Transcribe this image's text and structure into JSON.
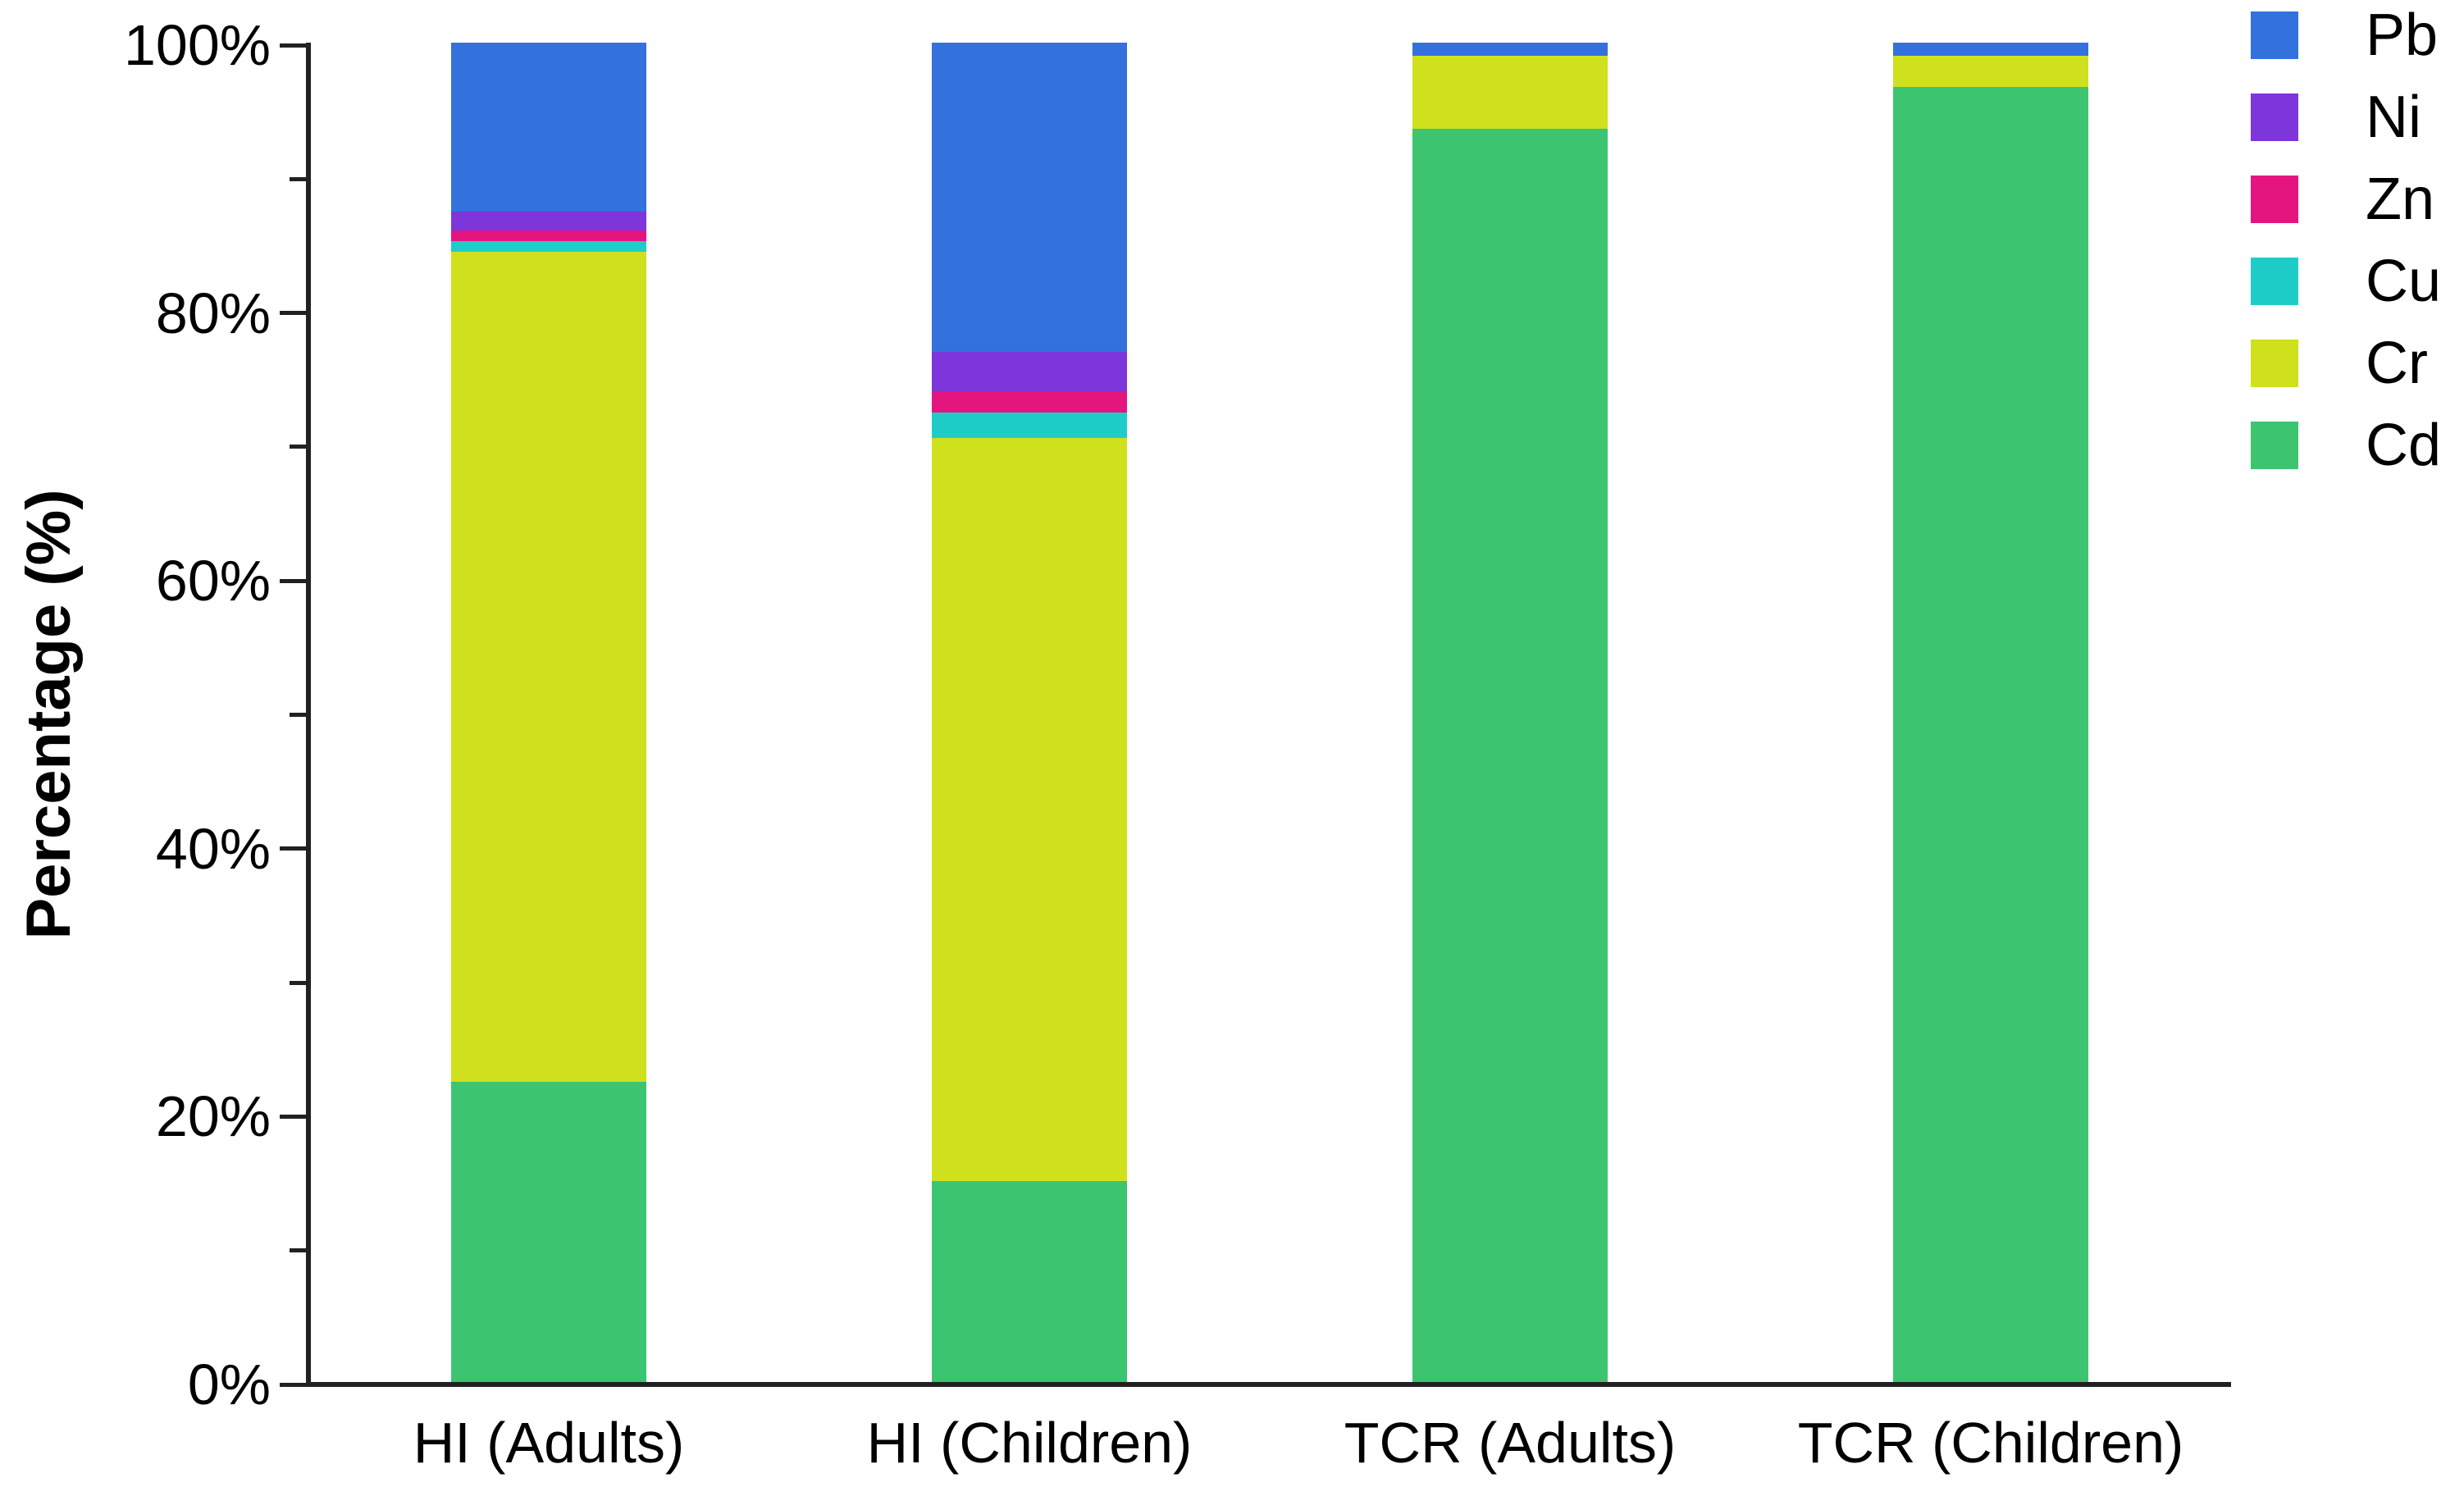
{
  "chart_data": {
    "type": "bar",
    "stacked": true,
    "title": "",
    "categories": [
      "HI (Adults)",
      "HI (Children)",
      "TCR (Adults)",
      "TCR (Children)"
    ],
    "series": [
      {
        "name": "Pb",
        "color": "#3371dd",
        "values": [
          12.6,
          23.1,
          1.0,
          1.0
        ]
      },
      {
        "name": "Ni",
        "color": "#7c36d9",
        "values": [
          1.4,
          3.0,
          0.0,
          0.0
        ]
      },
      {
        "name": "Zn",
        "color": "#e5157f",
        "values": [
          0.8,
          1.5,
          0.0,
          0.0
        ]
      },
      {
        "name": "Cu",
        "color": "#1fcdc8",
        "values": [
          0.8,
          1.9,
          0.0,
          0.0
        ]
      },
      {
        "name": "Cr",
        "color": "#cfe01d",
        "values": [
          62.0,
          55.5,
          5.4,
          2.3
        ]
      },
      {
        "name": "Cd",
        "color": "#3cc471",
        "values": [
          22.4,
          15.0,
          93.6,
          96.7
        ]
      }
    ],
    "stack_order_bottom_to_top": [
      "Cd",
      "Cr",
      "Cu",
      "Zn",
      "Ni",
      "Pb"
    ],
    "y_axis": {
      "title": "Percentage (%)",
      "range": [
        0,
        100
      ],
      "major_ticks": [
        {
          "label": "0%",
          "value": 0
        },
        {
          "label": "20%",
          "value": 20
        },
        {
          "label": "40%",
          "value": 40
        },
        {
          "label": "60%",
          "value": 60
        },
        {
          "label": "80%",
          "value": 80
        },
        {
          "label": "100%",
          "value": 100
        }
      ],
      "minor_tick_values": [
        10,
        30,
        50,
        70,
        90
      ]
    },
    "x_axis": {
      "title": ""
    },
    "legend": {
      "position": "top-right",
      "entries": [
        "Pb",
        "Ni",
        "Zn",
        "Cu",
        "Cr",
        "Cd"
      ]
    },
    "grid": false
  },
  "colors": {
    "axis": "#212121",
    "text": "#000000",
    "background": "#ffffff"
  }
}
